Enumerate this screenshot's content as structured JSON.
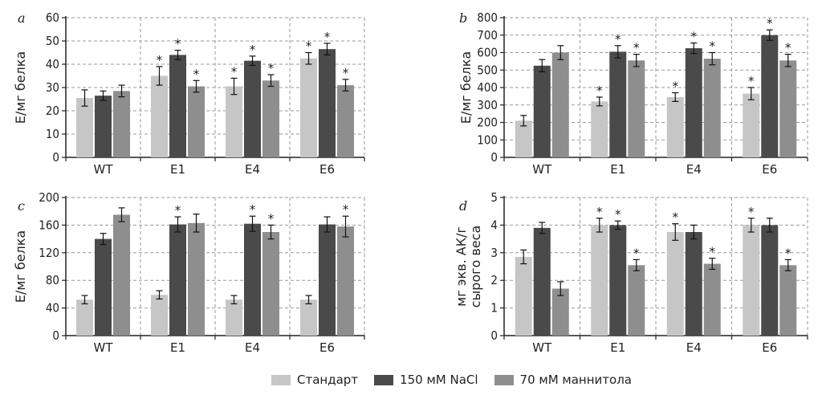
{
  "series_colors": [
    "#c6c6c6",
    "#4a4a4a",
    "#8e8e8e"
  ],
  "legend": [
    "Стандарт",
    "150 мМ NaCl",
    "70 мМ маннитола"
  ],
  "chart_data": [
    {
      "type": "bar",
      "panel_label": "a",
      "ylabel": "Е/мг белка",
      "ylim": [
        0,
        60
      ],
      "yticks": [
        0,
        10,
        20,
        30,
        40,
        50,
        60
      ],
      "categories": [
        "WT",
        "E1",
        "E4",
        "E6"
      ],
      "grid": true,
      "series": [
        {
          "name": "Стандарт",
          "values": [
            25.5,
            35,
            30.5,
            42.5
          ],
          "errors": [
            3.5,
            4,
            3.5,
            2.5
          ],
          "significant": [
            false,
            true,
            true,
            true
          ]
        },
        {
          "name": "150 мМ NaCl",
          "values": [
            26.5,
            44,
            41.5,
            46.5
          ],
          "errors": [
            2,
            2,
            2,
            2.5
          ],
          "significant": [
            false,
            true,
            true,
            true
          ]
        },
        {
          "name": "70 мМ маннитола",
          "values": [
            28.5,
            30.5,
            33,
            31
          ],
          "errors": [
            2.5,
            2.5,
            2.5,
            2.5
          ],
          "significant": [
            false,
            true,
            true,
            true
          ]
        }
      ]
    },
    {
      "type": "bar",
      "panel_label": "b",
      "ylabel": "Е/мг белка",
      "ylim": [
        0,
        800
      ],
      "yticks": [
        0,
        100,
        200,
        300,
        400,
        500,
        600,
        700,
        800
      ],
      "categories": [
        "WT",
        "E1",
        "E4",
        "E6"
      ],
      "grid": true,
      "series": [
        {
          "name": "Стандарт",
          "values": [
            210,
            320,
            345,
            365
          ],
          "errors": [
            30,
            25,
            25,
            35
          ],
          "significant": [
            false,
            true,
            true,
            true
          ]
        },
        {
          "name": "150 мМ NaCl",
          "values": [
            525,
            605,
            625,
            700
          ],
          "errors": [
            35,
            35,
            30,
            30
          ],
          "significant": [
            false,
            true,
            true,
            true
          ]
        },
        {
          "name": "70 мМ маннитола",
          "values": [
            600,
            555,
            565,
            555
          ],
          "errors": [
            40,
            35,
            35,
            35
          ],
          "significant": [
            false,
            true,
            true,
            true
          ]
        }
      ]
    },
    {
      "type": "bar",
      "panel_label": "c",
      "ylabel": "Е/мг белка",
      "ylim": [
        0,
        200
      ],
      "yticks": [
        0,
        40,
        80,
        120,
        160,
        200
      ],
      "categories": [
        "WT",
        "E1",
        "E4",
        "E6"
      ],
      "grid": true,
      "series": [
        {
          "name": "Стандарт",
          "values": [
            52,
            59,
            52,
            52
          ],
          "errors": [
            6,
            6,
            6,
            6
          ],
          "significant": [
            false,
            false,
            false,
            false
          ]
        },
        {
          "name": "150 мМ NaCl",
          "values": [
            140,
            161,
            162,
            161
          ],
          "errors": [
            8,
            11,
            11,
            11
          ],
          "significant": [
            false,
            true,
            true,
            false
          ]
        },
        {
          "name": "70 мМ маннитола",
          "values": [
            175,
            163,
            150,
            158
          ],
          "errors": [
            10,
            13,
            10,
            15
          ],
          "significant": [
            false,
            false,
            true,
            true
          ]
        }
      ]
    },
    {
      "type": "bar",
      "panel_label": "d",
      "ylabel": "мг экв. АК/г сырого веса",
      "ylim": [
        0,
        5
      ],
      "yticks": [
        0,
        1,
        2,
        3,
        4,
        5
      ],
      "categories": [
        "WT",
        "E1",
        "E4",
        "E6"
      ],
      "grid": true,
      "series": [
        {
          "name": "Стандарт",
          "values": [
            2.85,
            4.0,
            3.75,
            4.0
          ],
          "errors": [
            0.25,
            0.25,
            0.3,
            0.25
          ],
          "significant": [
            false,
            true,
            true,
            true
          ]
        },
        {
          "name": "150 мМ NaCl",
          "values": [
            3.9,
            4.0,
            3.75,
            4.0
          ],
          "errors": [
            0.2,
            0.15,
            0.25,
            0.25
          ],
          "significant": [
            false,
            true,
            false,
            false
          ]
        },
        {
          "name": "70 мМ маннитола",
          "values": [
            1.7,
            2.55,
            2.6,
            2.55
          ],
          "errors": [
            0.25,
            0.2,
            0.2,
            0.2
          ],
          "significant": [
            false,
            true,
            true,
            true
          ]
        }
      ]
    }
  ]
}
